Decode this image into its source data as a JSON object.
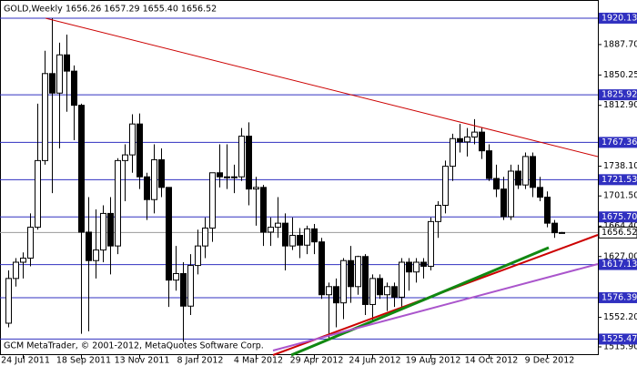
{
  "chart_data": {
    "type": "candlestick",
    "title": "GOLD,Weekly",
    "header_values": "1656.26 1657.29 1655.40 1656.52",
    "watermark": "GCM MetaTrader, © 2001-2012, MetaQuotes Software Corp.",
    "categories": [
      null,
      null,
      "24 Jul 2011",
      null,
      null,
      null,
      null,
      null,
      null,
      null,
      "18 Sep 2011",
      null,
      null,
      null,
      null,
      null,
      null,
      null,
      "13 Nov 2011",
      null,
      null,
      null,
      null,
      null,
      null,
      null,
      "8 Jan 2012",
      null,
      null,
      null,
      null,
      null,
      null,
      null,
      "4 Mar 2012",
      null,
      null,
      null,
      null,
      null,
      null,
      null,
      "29 Apr 2012",
      null,
      null,
      null,
      null,
      null,
      null,
      null,
      "24 Jun 2012",
      null,
      null,
      null,
      null,
      null,
      null,
      null,
      "19 Aug 2012",
      null,
      null,
      null,
      null,
      null,
      null,
      null,
      "14 Oct 2012",
      null,
      null,
      null,
      null,
      null,
      null,
      null,
      "9 Dec 2012",
      null,
      null
    ],
    "open": [
      1545,
      1600,
      1620,
      1625,
      1663,
      1745,
      1852,
      1828,
      1875,
      1855,
      1813,
      1657,
      1622,
      1635,
      1680,
      1640,
      1745,
      1752,
      1790,
      1725,
      1697,
      1746,
      1712,
      1598,
      1606,
      1566,
      1616,
      1640,
      1662,
      1730,
      1725,
      1725,
      1725,
      1775,
      1710,
      1712,
      1657,
      1663,
      1668,
      1640,
      1653,
      1641,
      1661,
      1645,
      1580,
      1590,
      1570,
      1622,
      1590,
      1627,
      1568,
      1600,
      1580,
      1590,
      1577,
      1620,
      1608,
      1620,
      1615,
      1670,
      1690,
      1738,
      1772,
      1768,
      1774,
      1780,
      1757,
      1723,
      1710,
      1676,
      1732,
      1715,
      1750,
      1712,
      1700,
      1668,
      1656.26
    ],
    "high": [
      1610,
      1625,
      1632,
      1680,
      1815,
      1880,
      1920.13,
      1890,
      1900,
      1862,
      1815,
      1700,
      1685,
      1690,
      1700,
      1748,
      1765,
      1802,
      1803,
      1730,
      1765,
      1760,
      1712,
      1640,
      1620,
      1630,
      1660,
      1675,
      1730,
      1765,
      1765,
      1740,
      1785,
      1792,
      1725,
      1715,
      1675,
      1700,
      1680,
      1675,
      1662,
      1665,
      1667,
      1650,
      1595,
      1600,
      1625,
      1640,
      1628,
      1630,
      1605,
      1605,
      1595,
      1595,
      1625,
      1625,
      1625,
      1625,
      1675,
      1695,
      1745,
      1778,
      1790,
      1785,
      1796,
      1786,
      1765,
      1740,
      1725,
      1740,
      1740,
      1755,
      1755,
      1725,
      1707,
      1672,
      1657.29
    ],
    "low": [
      1540,
      1590,
      1600,
      1615,
      1660,
      1740,
      1705,
      1760,
      1805,
      1770,
      1532,
      1535,
      1600,
      1620,
      1605,
      1630,
      1695,
      1730,
      1710,
      1672,
      1680,
      1700,
      1565,
      1585,
      1522,
      1555,
      1605,
      1625,
      1645,
      1712,
      1710,
      1705,
      1720,
      1690,
      1665,
      1640,
      1640,
      1650,
      1610,
      1635,
      1625,
      1630,
      1630,
      1575,
      1527,
      1540,
      1550,
      1570,
      1580,
      1555,
      1547,
      1575,
      1560,
      1565,
      1565,
      1585,
      1595,
      1600,
      1610,
      1650,
      1680,
      1720,
      1755,
      1750,
      1765,
      1747,
      1720,
      1700,
      1672,
      1672,
      1710,
      1710,
      1700,
      1695,
      1663,
      1650,
      1655.4
    ],
    "close": [
      1600,
      1620,
      1625,
      1663,
      1745,
      1852,
      1828,
      1875,
      1855,
      1813,
      1657,
      1622,
      1635,
      1680,
      1640,
      1745,
      1752,
      1790,
      1725,
      1697,
      1746,
      1712,
      1598,
      1606,
      1566,
      1616,
      1640,
      1662,
      1730,
      1725,
      1725,
      1725,
      1775,
      1710,
      1712,
      1657,
      1663,
      1668,
      1640,
      1653,
      1641,
      1661,
      1645,
      1580,
      1590,
      1570,
      1622,
      1590,
      1627,
      1568,
      1600,
      1580,
      1590,
      1577,
      1620,
      1608,
      1620,
      1615,
      1670,
      1690,
      1738,
      1772,
      1768,
      1774,
      1780,
      1757,
      1723,
      1710,
      1676,
      1732,
      1715,
      1750,
      1712,
      1700,
      1668,
      1656.26,
      1656.52
    ],
    "ylim": [
      1505.8,
      1938.0
    ],
    "yticks": [
      {
        "value": 1887.7,
        "label": "1887.70"
      },
      1850.25,
      {
        "value": 1812.9,
        "label": "1812.90"
      },
      {
        "value": 1738.1,
        "label": "1738.10"
      },
      {
        "value": 1701.5,
        "label": "1701.50"
      },
      {
        "value": 1664.4,
        "label": "1664.40"
      },
      {
        "value": 1627,
        "label": "1627.00"
      },
      {
        "value": 1552.2,
        "label": "1552.20"
      },
      {
        "value": 1515.9,
        "label": "1515.90"
      }
    ],
    "levels": [
      1920.13,
      1825.92,
      1767.36,
      1721.53,
      {
        "value": 1675.7,
        "label": "1675.70"
      },
      1617.13,
      1576.39,
      1525.47
    ],
    "price_line": 1656.52,
    "level_color": "#3030c0",
    "bull_color": "#ffffff",
    "bear_color": "#000000"
  }
}
